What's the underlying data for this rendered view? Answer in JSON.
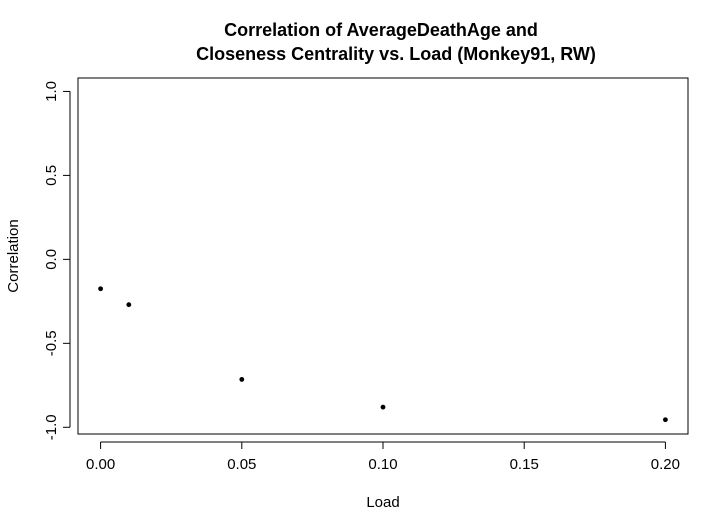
{
  "chart_data": {
    "type": "scatter",
    "title": [
      "Correlation of AverageDeathAge and",
      "Closeness Centrality vs. Load (Monkey91, RW)"
    ],
    "xlabel": "Load",
    "ylabel": "Correlation",
    "xlim": [
      -0.008,
      0.208
    ],
    "ylim": [
      -1.04,
      1.08
    ],
    "x_ticks": [
      {
        "value": 0.0,
        "label": "0.00"
      },
      {
        "value": 0.05,
        "label": "0.05"
      },
      {
        "value": 0.1,
        "label": "0.10"
      },
      {
        "value": 0.15,
        "label": "0.15"
      },
      {
        "value": 0.2,
        "label": "0.20"
      }
    ],
    "y_ticks": [
      {
        "value": -1.0,
        "label": "-1.0"
      },
      {
        "value": -0.5,
        "label": "-0.5"
      },
      {
        "value": 0.0,
        "label": "0.0"
      },
      {
        "value": 0.5,
        "label": "0.5"
      },
      {
        "value": 1.0,
        "label": "1.0"
      }
    ],
    "grid": false,
    "point_color": "#000000",
    "series": [
      {
        "x": [
          0.0,
          0.01,
          0.05,
          0.1,
          0.2
        ],
        "y": [
          -0.175,
          -0.27,
          -0.715,
          -0.88,
          -0.955
        ]
      }
    ]
  }
}
